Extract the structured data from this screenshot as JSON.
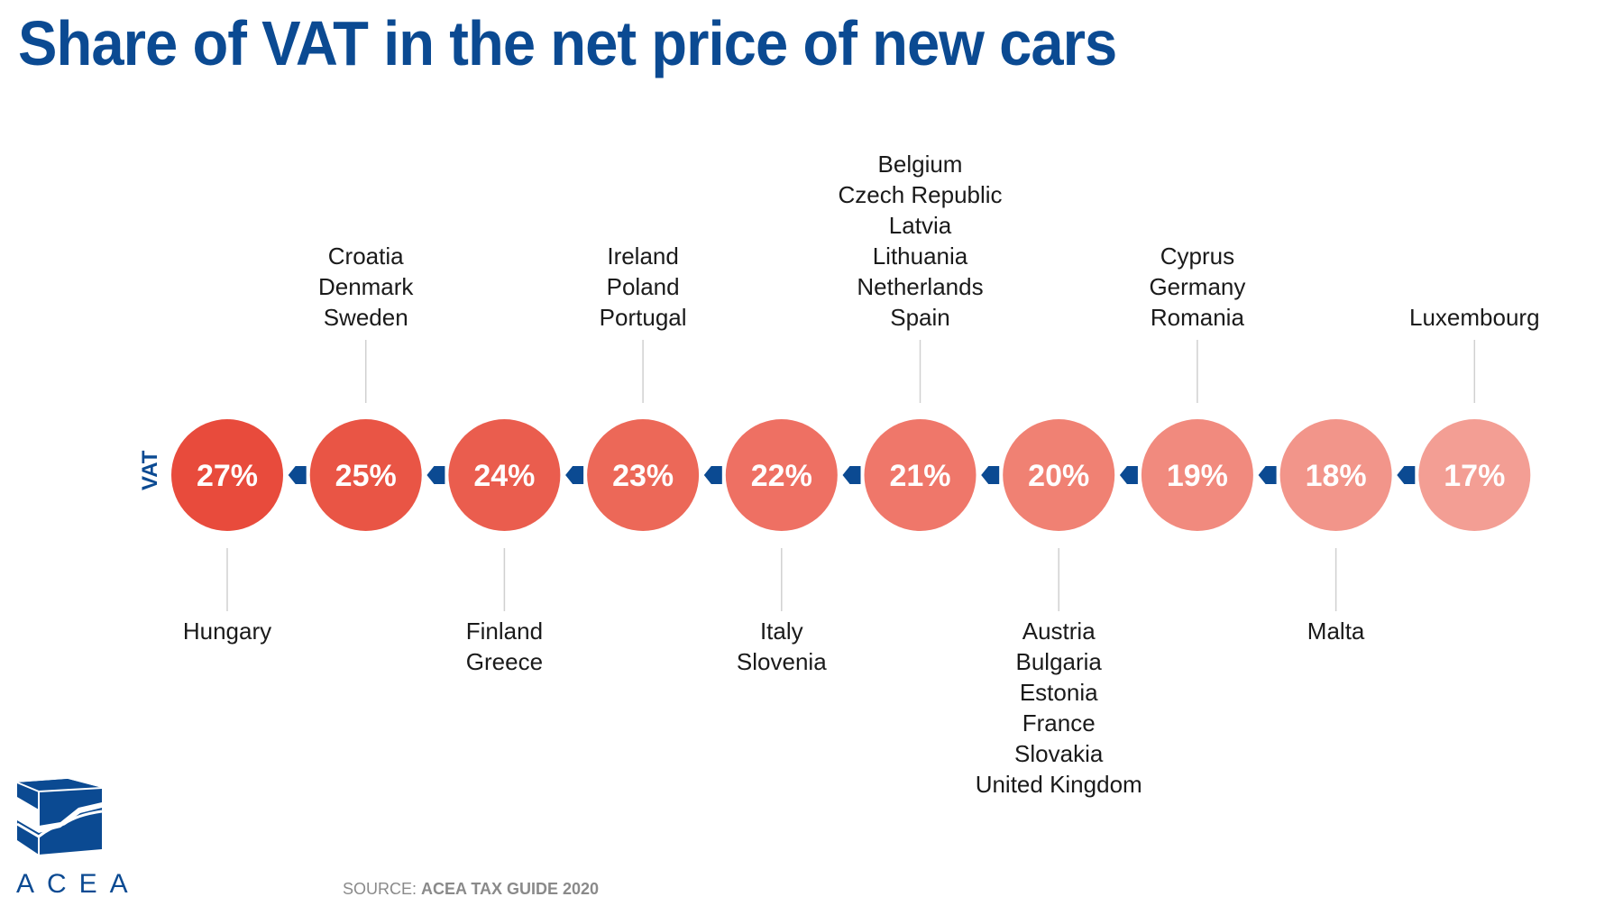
{
  "title": "Share of VAT in the net price of new cars",
  "axis_label": "VAT",
  "logo": {
    "name": "acea-logo-icon",
    "text": "ACEA"
  },
  "source": {
    "label": "SOURCE: ",
    "reference": "ACEA TAX GUIDE 2020"
  },
  "colors": {
    "title": "#0b4a92",
    "arrow": "#0b4a92",
    "connector": "#d0d0d0",
    "circles": [
      "#e84b3c",
      "#e95545",
      "#ea5d4e",
      "#ec6858",
      "#ee7063",
      "#ef776a",
      "#f08173",
      "#f18a7e",
      "#f2958a",
      "#f39e94"
    ]
  },
  "chart_data": {
    "type": "timeline",
    "title": "Share of VAT in the net price of new cars",
    "axis_label": "VAT",
    "unit": "%",
    "order": "descending",
    "items": [
      {
        "value": 27,
        "label": "27%",
        "position": "below",
        "countries": [
          "Hungary"
        ]
      },
      {
        "value": 25,
        "label": "25%",
        "position": "above",
        "countries": [
          "Croatia",
          "Denmark",
          "Sweden"
        ]
      },
      {
        "value": 24,
        "label": "24%",
        "position": "below",
        "countries": [
          "Finland",
          "Greece"
        ]
      },
      {
        "value": 23,
        "label": "23%",
        "position": "above",
        "countries": [
          "Ireland",
          "Poland",
          "Portugal"
        ]
      },
      {
        "value": 22,
        "label": "22%",
        "position": "below",
        "countries": [
          "Italy",
          "Slovenia"
        ]
      },
      {
        "value": 21,
        "label": "21%",
        "position": "above",
        "countries": [
          "Belgium",
          "Czech Republic",
          "Latvia",
          "Lithuania",
          "Netherlands",
          "Spain"
        ]
      },
      {
        "value": 20,
        "label": "20%",
        "position": "below",
        "countries": [
          "Austria",
          "Bulgaria",
          "Estonia",
          "France",
          "Slovakia",
          "United Kingdom"
        ]
      },
      {
        "value": 19,
        "label": "19%",
        "position": "above",
        "countries": [
          "Cyprus",
          "Germany",
          "Romania"
        ]
      },
      {
        "value": 18,
        "label": "18%",
        "position": "below",
        "countries": [
          "Malta"
        ]
      },
      {
        "value": 17,
        "label": "17%",
        "position": "above",
        "countries": [
          "Luxembourg"
        ]
      }
    ],
    "source": "ACEA TAX GUIDE 2020"
  }
}
